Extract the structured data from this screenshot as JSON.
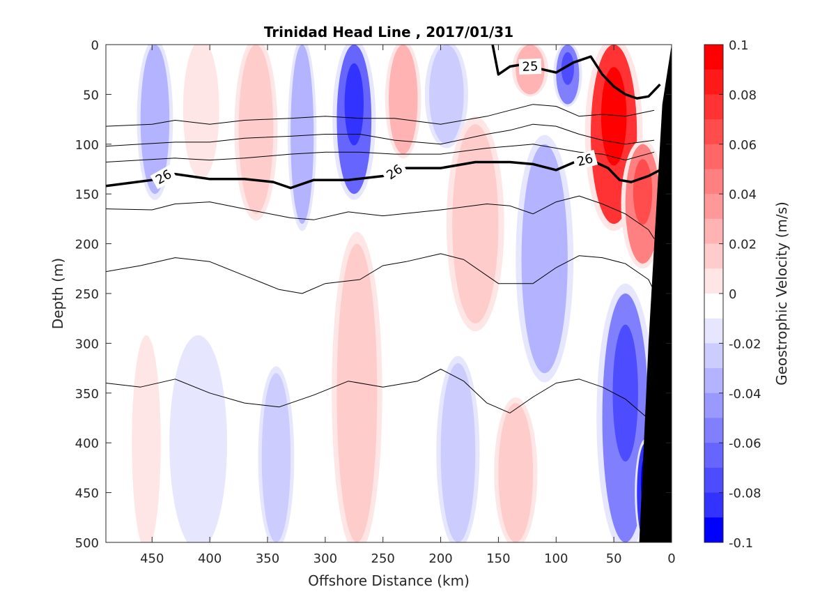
{
  "chart_data": {
    "type": "heatmap",
    "title": "Trinidad Head Line , 2017/01/31",
    "xlabel": "Offshore Distance (km)",
    "ylabel": "Depth (m)",
    "colorbar_label": "Geostrophic Velocity (m/s)",
    "xlim": [
      490,
      0
    ],
    "ylim": [
      0,
      500
    ],
    "x_ticks": [
      "450",
      "400",
      "350",
      "300",
      "250",
      "200",
      "150",
      "100",
      "50",
      "0"
    ],
    "y_ticks": [
      "0",
      "50",
      "100",
      "150",
      "200",
      "250",
      "300",
      "350",
      "400",
      "450",
      "500"
    ],
    "colorbar_ticks": [
      "0.1",
      "0.08",
      "0.06",
      "0.04",
      "0.02",
      "0",
      "-0.02",
      "-0.04",
      "-0.06",
      "-0.08",
      "-0.1"
    ],
    "colorbar_levels": [
      0.1,
      0.09,
      0.08,
      0.07,
      0.06,
      0.05,
      0.04,
      0.03,
      0.02,
      0.01,
      0.0,
      -0.01,
      -0.02,
      -0.03,
      -0.04,
      -0.05,
      -0.06,
      -0.07,
      -0.08,
      -0.09
    ],
    "colorbar_colors": [
      "#ff0000",
      "#ff1a1a",
      "#ff3333",
      "#ff4d4d",
      "#ff6666",
      "#ff8080",
      "#ff9999",
      "#ffb3b3",
      "#ffcccc",
      "#ffe6e6",
      "#ffffff",
      "#e6e6ff",
      "#ccccff",
      "#b3b3ff",
      "#9999ff",
      "#8080ff",
      "#6666ff",
      "#4d4dff",
      "#3333ff",
      "#0000ff"
    ],
    "velocity_cells": [
      {
        "x": [
          460,
          435
        ],
        "z": [
          0,
          150
        ],
        "value": -0.03
      },
      {
        "x": [
          420,
          395
        ],
        "z": [
          0,
          130
        ],
        "value": 0.01
      },
      {
        "x": [
          375,
          345
        ],
        "z": [
          0,
          170
        ],
        "value": 0.02
      },
      {
        "x": [
          330,
          310
        ],
        "z": [
          0,
          180
        ],
        "value": -0.03
      },
      {
        "x": [
          290,
          260
        ],
        "z": [
          0,
          150
        ],
        "value": -0.06
      },
      {
        "x": [
          245,
          220
        ],
        "z": [
          0,
          110
        ],
        "value": 0.03
      },
      {
        "x": [
          210,
          180
        ],
        "z": [
          0,
          100
        ],
        "value": -0.02
      },
      {
        "x": [
          190,
          150
        ],
        "z": [
          80,
          280
        ],
        "value": 0.02
      },
      {
        "x": [
          135,
          110
        ],
        "z": [
          0,
          50
        ],
        "value": 0.03
      },
      {
        "x": [
          100,
          80
        ],
        "z": [
          0,
          60
        ],
        "value": -0.05
      },
      {
        "x": [
          70,
          30
        ],
        "z": [
          0,
          180
        ],
        "value": 0.08
      },
      {
        "x": [
          40,
          10
        ],
        "z": [
          100,
          220
        ],
        "value": 0.05
      },
      {
        "x": [
          130,
          90
        ],
        "z": [
          100,
          330
        ],
        "value": -0.03
      },
      {
        "x": [
          60,
          20
        ],
        "z": [
          250,
          500
        ],
        "value": -0.05
      },
      {
        "x": [
          30,
          15
        ],
        "z": [
          400,
          500
        ],
        "value": -0.08
      },
      {
        "x": [
          290,
          255
        ],
        "z": [
          200,
          500
        ],
        "value": 0.02
      },
      {
        "x": [
          465,
          445
        ],
        "z": [
          300,
          500
        ],
        "value": 0.01
      },
      {
        "x": [
          430,
          390
        ],
        "z": [
          300,
          500
        ],
        "value": -0.01
      },
      {
        "x": [
          355,
          330
        ],
        "z": [
          330,
          500
        ],
        "value": -0.02
      },
      {
        "x": [
          200,
          170
        ],
        "z": [
          320,
          500
        ],
        "value": -0.02
      },
      {
        "x": [
          150,
          120
        ],
        "z": [
          360,
          500
        ],
        "value": 0.02
      }
    ],
    "density_contours": [
      {
        "label": "",
        "bold": false,
        "x": [
          490,
          450,
          430,
          400,
          370,
          330,
          300,
          270,
          240,
          200,
          160,
          140,
          120,
          100,
          80,
          60,
          40,
          15
        ],
        "z": [
          82,
          80,
          76,
          80,
          76,
          74,
          72,
          74,
          74,
          80,
          72,
          66,
          60,
          62,
          72,
          70,
          72,
          66
        ]
      },
      {
        "label": "",
        "bold": false,
        "x": [
          490,
          460,
          430,
          400,
          370,
          330,
          300,
          270,
          240,
          200,
          160,
          140,
          120,
          100,
          80,
          60,
          40,
          15
        ],
        "z": [
          102,
          100,
          98,
          98,
          94,
          92,
          90,
          90,
          96,
          100,
          90,
          86,
          80,
          82,
          90,
          96,
          100,
          96
        ]
      },
      {
        "label": "",
        "bold": false,
        "x": [
          490,
          460,
          430,
          400,
          370,
          330,
          300,
          270,
          240,
          200,
          160,
          140,
          120,
          100,
          80,
          60,
          40,
          15
        ],
        "z": [
          118,
          116,
          114,
          116,
          114,
          110,
          108,
          108,
          110,
          110,
          104,
          102,
          100,
          104,
          108,
          110,
          116,
          108
        ]
      },
      {
        "label": "26",
        "bold": true,
        "x": [
          490,
          470,
          450,
          430,
          400,
          370,
          345,
          330,
          310,
          280,
          250,
          230,
          200,
          170,
          140,
          120,
          100,
          80,
          70,
          55,
          45,
          35,
          20,
          10
        ],
        "z": [
          142,
          139,
          136,
          130,
          135,
          135,
          138,
          144,
          136,
          136,
          132,
          124,
          124,
          118,
          118,
          120,
          126,
          116,
          116,
          124,
          136,
          138,
          132,
          126
        ]
      },
      {
        "label": "",
        "bold": false,
        "x": [
          490,
          450,
          430,
          400,
          370,
          330,
          310,
          280,
          250,
          200,
          160,
          140,
          120,
          100,
          80,
          60,
          40,
          20,
          15
        ],
        "z": [
          165,
          166,
          160,
          158,
          165,
          174,
          176,
          168,
          172,
          166,
          160,
          162,
          170,
          158,
          152,
          160,
          170,
          186,
          195
        ]
      },
      {
        "label": "",
        "bold": false,
        "x": [
          490,
          460,
          430,
          400,
          370,
          340,
          320,
          300,
          270,
          250,
          230,
          200,
          180,
          150,
          120,
          100,
          80,
          60,
          40,
          20,
          10
        ],
        "z": [
          228,
          222,
          214,
          218,
          232,
          246,
          250,
          240,
          236,
          222,
          218,
          210,
          216,
          240,
          240,
          224,
          212,
          214,
          220,
          236,
          260
        ]
      },
      {
        "label": "",
        "bold": false,
        "x": [
          490,
          460,
          430,
          400,
          370,
          340,
          310,
          280,
          250,
          220,
          200,
          180,
          160,
          140,
          120,
          100,
          80,
          60,
          40,
          20
        ],
        "z": [
          340,
          344,
          336,
          350,
          360,
          364,
          352,
          338,
          344,
          338,
          326,
          338,
          360,
          370,
          354,
          340,
          336,
          344,
          356,
          376
        ]
      },
      {
        "label": "25",
        "bold": true,
        "x": [
          155,
          150,
          140,
          130,
          115,
          100,
          85,
          70,
          60,
          50,
          40,
          30,
          20,
          10
        ],
        "z": [
          0,
          30,
          22,
          20,
          24,
          28,
          18,
          12,
          30,
          42,
          50,
          54,
          52,
          40
        ]
      }
    ],
    "bathymetry": {
      "x": [
        0,
        8,
        20,
        28,
        28
      ],
      "z": [
        0,
        60,
        300,
        500,
        500
      ],
      "color": "#000000"
    }
  }
}
